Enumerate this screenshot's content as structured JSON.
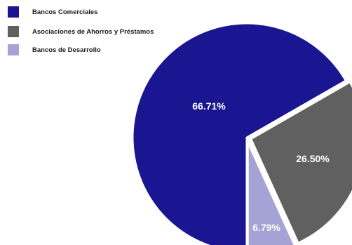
{
  "chart_data": {
    "type": "pie",
    "title": "",
    "series": [
      {
        "name": "Bancos Comerciales",
        "value": 66.71,
        "label": "66.71%",
        "color": "#1a1591"
      },
      {
        "name": "Asociaciones de Ahorros y Préstamos",
        "value": 26.5,
        "label": "26.50%",
        "color": "#606060"
      },
      {
        "name": "Bancos de Desarrollo",
        "value": 6.79,
        "label": "6.79%",
        "color": "#a5a2d5"
      }
    ],
    "legend_position": "top-left",
    "slice_border_color": "#ffffff",
    "label_color": "#ffffff"
  }
}
